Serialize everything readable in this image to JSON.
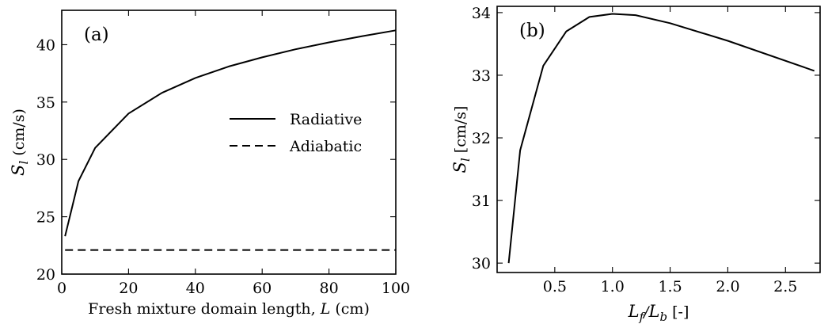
{
  "chart_data": [
    {
      "type": "line",
      "panel_tag": "(a)",
      "xlabel": "Fresh mixture domain length, L (cm)",
      "ylabel": "S_l (cm/s)",
      "xlim": [
        0,
        100
      ],
      "ylim": [
        20,
        43
      ],
      "xticks": [
        0,
        20,
        40,
        60,
        80,
        100
      ],
      "yticks": [
        20,
        25,
        30,
        35,
        40
      ],
      "grid": false,
      "legend_position": "center-right",
      "series": [
        {
          "name": "Radiative",
          "style": "solid",
          "x": [
            1,
            5,
            10,
            20,
            30,
            40,
            50,
            60,
            70,
            80,
            90,
            100
          ],
          "y": [
            23.3,
            28.1,
            31.0,
            34.0,
            35.8,
            37.1,
            38.1,
            38.9,
            39.6,
            40.2,
            40.75,
            41.25
          ]
        },
        {
          "name": "Adiabatic",
          "style": "dashed",
          "x": [
            1,
            100
          ],
          "y": [
            22.1,
            22.1
          ]
        }
      ]
    },
    {
      "type": "line",
      "panel_tag": "(b)",
      "xlabel": "L_f / L_b [-]",
      "ylabel": "S_l [cm/s]",
      "xlim": [
        0,
        2.8
      ],
      "ylim": [
        29.85,
        34.1
      ],
      "xticks": [
        "0.5",
        "1.0",
        "1.5",
        "2.0",
        "2.5"
      ],
      "yticks": [
        "30",
        "31",
        "32",
        "33",
        "34"
      ],
      "grid": false,
      "series": [
        {
          "style": "solid",
          "x": [
            0.1,
            0.2,
            0.4,
            0.6,
            0.8,
            1.0,
            1.2,
            1.5,
            2.0,
            2.75
          ],
          "y": [
            30.0,
            31.8,
            33.15,
            33.7,
            33.93,
            33.98,
            33.96,
            33.83,
            33.55,
            33.07
          ]
        }
      ]
    }
  ]
}
